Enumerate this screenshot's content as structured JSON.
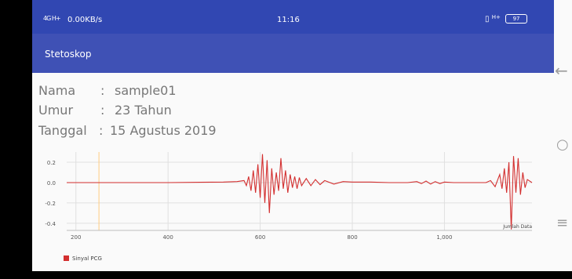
{
  "status_bar": {
    "signal": "4G H+",
    "speed": "0.00KB/s",
    "time": "11:16",
    "network": "H+",
    "battery": "97"
  },
  "app_bar": {
    "title": "Stetoskop"
  },
  "info": {
    "name_label": "Nama",
    "name_sep": ":",
    "name_value": "sample01",
    "age_label": "Umur",
    "age_sep": ":",
    "age_value": "23 Tahun",
    "date_label": "Tanggal",
    "date_sep": ":",
    "date_value": "15 Agustus 2019"
  },
  "nav": {
    "back_icon": "back-arrow",
    "home_icon": "circle",
    "menu_icon": "lines"
  },
  "chart_data": {
    "type": "line",
    "xlabel": "Jumlah Data",
    "ylabel": "",
    "xlim": [
      180,
      1190
    ],
    "ylim": [
      -0.47,
      0.3
    ],
    "x_ticks": [
      "200",
      "400",
      "600",
      "800",
      "1,000"
    ],
    "x_tick_values": [
      200,
      400,
      600,
      800,
      1000
    ],
    "y_ticks": [
      "0.2",
      "0.0",
      "-0.2",
      "-0.4"
    ],
    "y_tick_values": [
      0.2,
      0.0,
      -0.2,
      -0.4
    ],
    "grid": true,
    "legend": "bottom-left",
    "series": [
      {
        "name": "Sinyal PCG",
        "color": "#d32f2f",
        "x": [
          180,
          260,
          400,
          520,
          550,
          565,
          570,
          575,
          580,
          585,
          590,
          595,
          600,
          605,
          610,
          615,
          620,
          625,
          630,
          635,
          640,
          645,
          650,
          655,
          660,
          665,
          670,
          675,
          680,
          685,
          690,
          700,
          710,
          720,
          730,
          740,
          760,
          780,
          800,
          840,
          880,
          920,
          940,
          950,
          960,
          970,
          980,
          990,
          1000,
          1020,
          1060,
          1090,
          1100,
          1110,
          1120,
          1125,
          1130,
          1135,
          1140,
          1145,
          1150,
          1155,
          1160,
          1165,
          1170,
          1175,
          1180,
          1190
        ],
        "y": [
          0.0,
          0.0,
          0.0,
          0.005,
          0.01,
          0.02,
          -0.03,
          0.06,
          -0.08,
          0.12,
          -0.1,
          0.18,
          -0.15,
          0.28,
          -0.2,
          0.22,
          -0.3,
          0.14,
          -0.12,
          0.1,
          -0.08,
          0.24,
          -0.06,
          0.12,
          -0.1,
          0.08,
          -0.05,
          0.06,
          -0.06,
          0.05,
          -0.03,
          0.04,
          -0.03,
          0.03,
          -0.02,
          0.02,
          -0.015,
          0.01,
          0.005,
          0.005,
          0.0,
          0.0,
          0.01,
          -0.01,
          0.015,
          -0.015,
          0.01,
          -0.01,
          0.005,
          0.0,
          0.0,
          0.0,
          0.02,
          -0.04,
          0.08,
          -0.06,
          0.14,
          -0.1,
          0.2,
          -0.46,
          0.26,
          -0.1,
          0.24,
          -0.12,
          0.1,
          -0.05,
          0.03,
          0.0
        ]
      }
    ],
    "marker_line_x": 250,
    "marker_line_color": "#ffcc80"
  }
}
